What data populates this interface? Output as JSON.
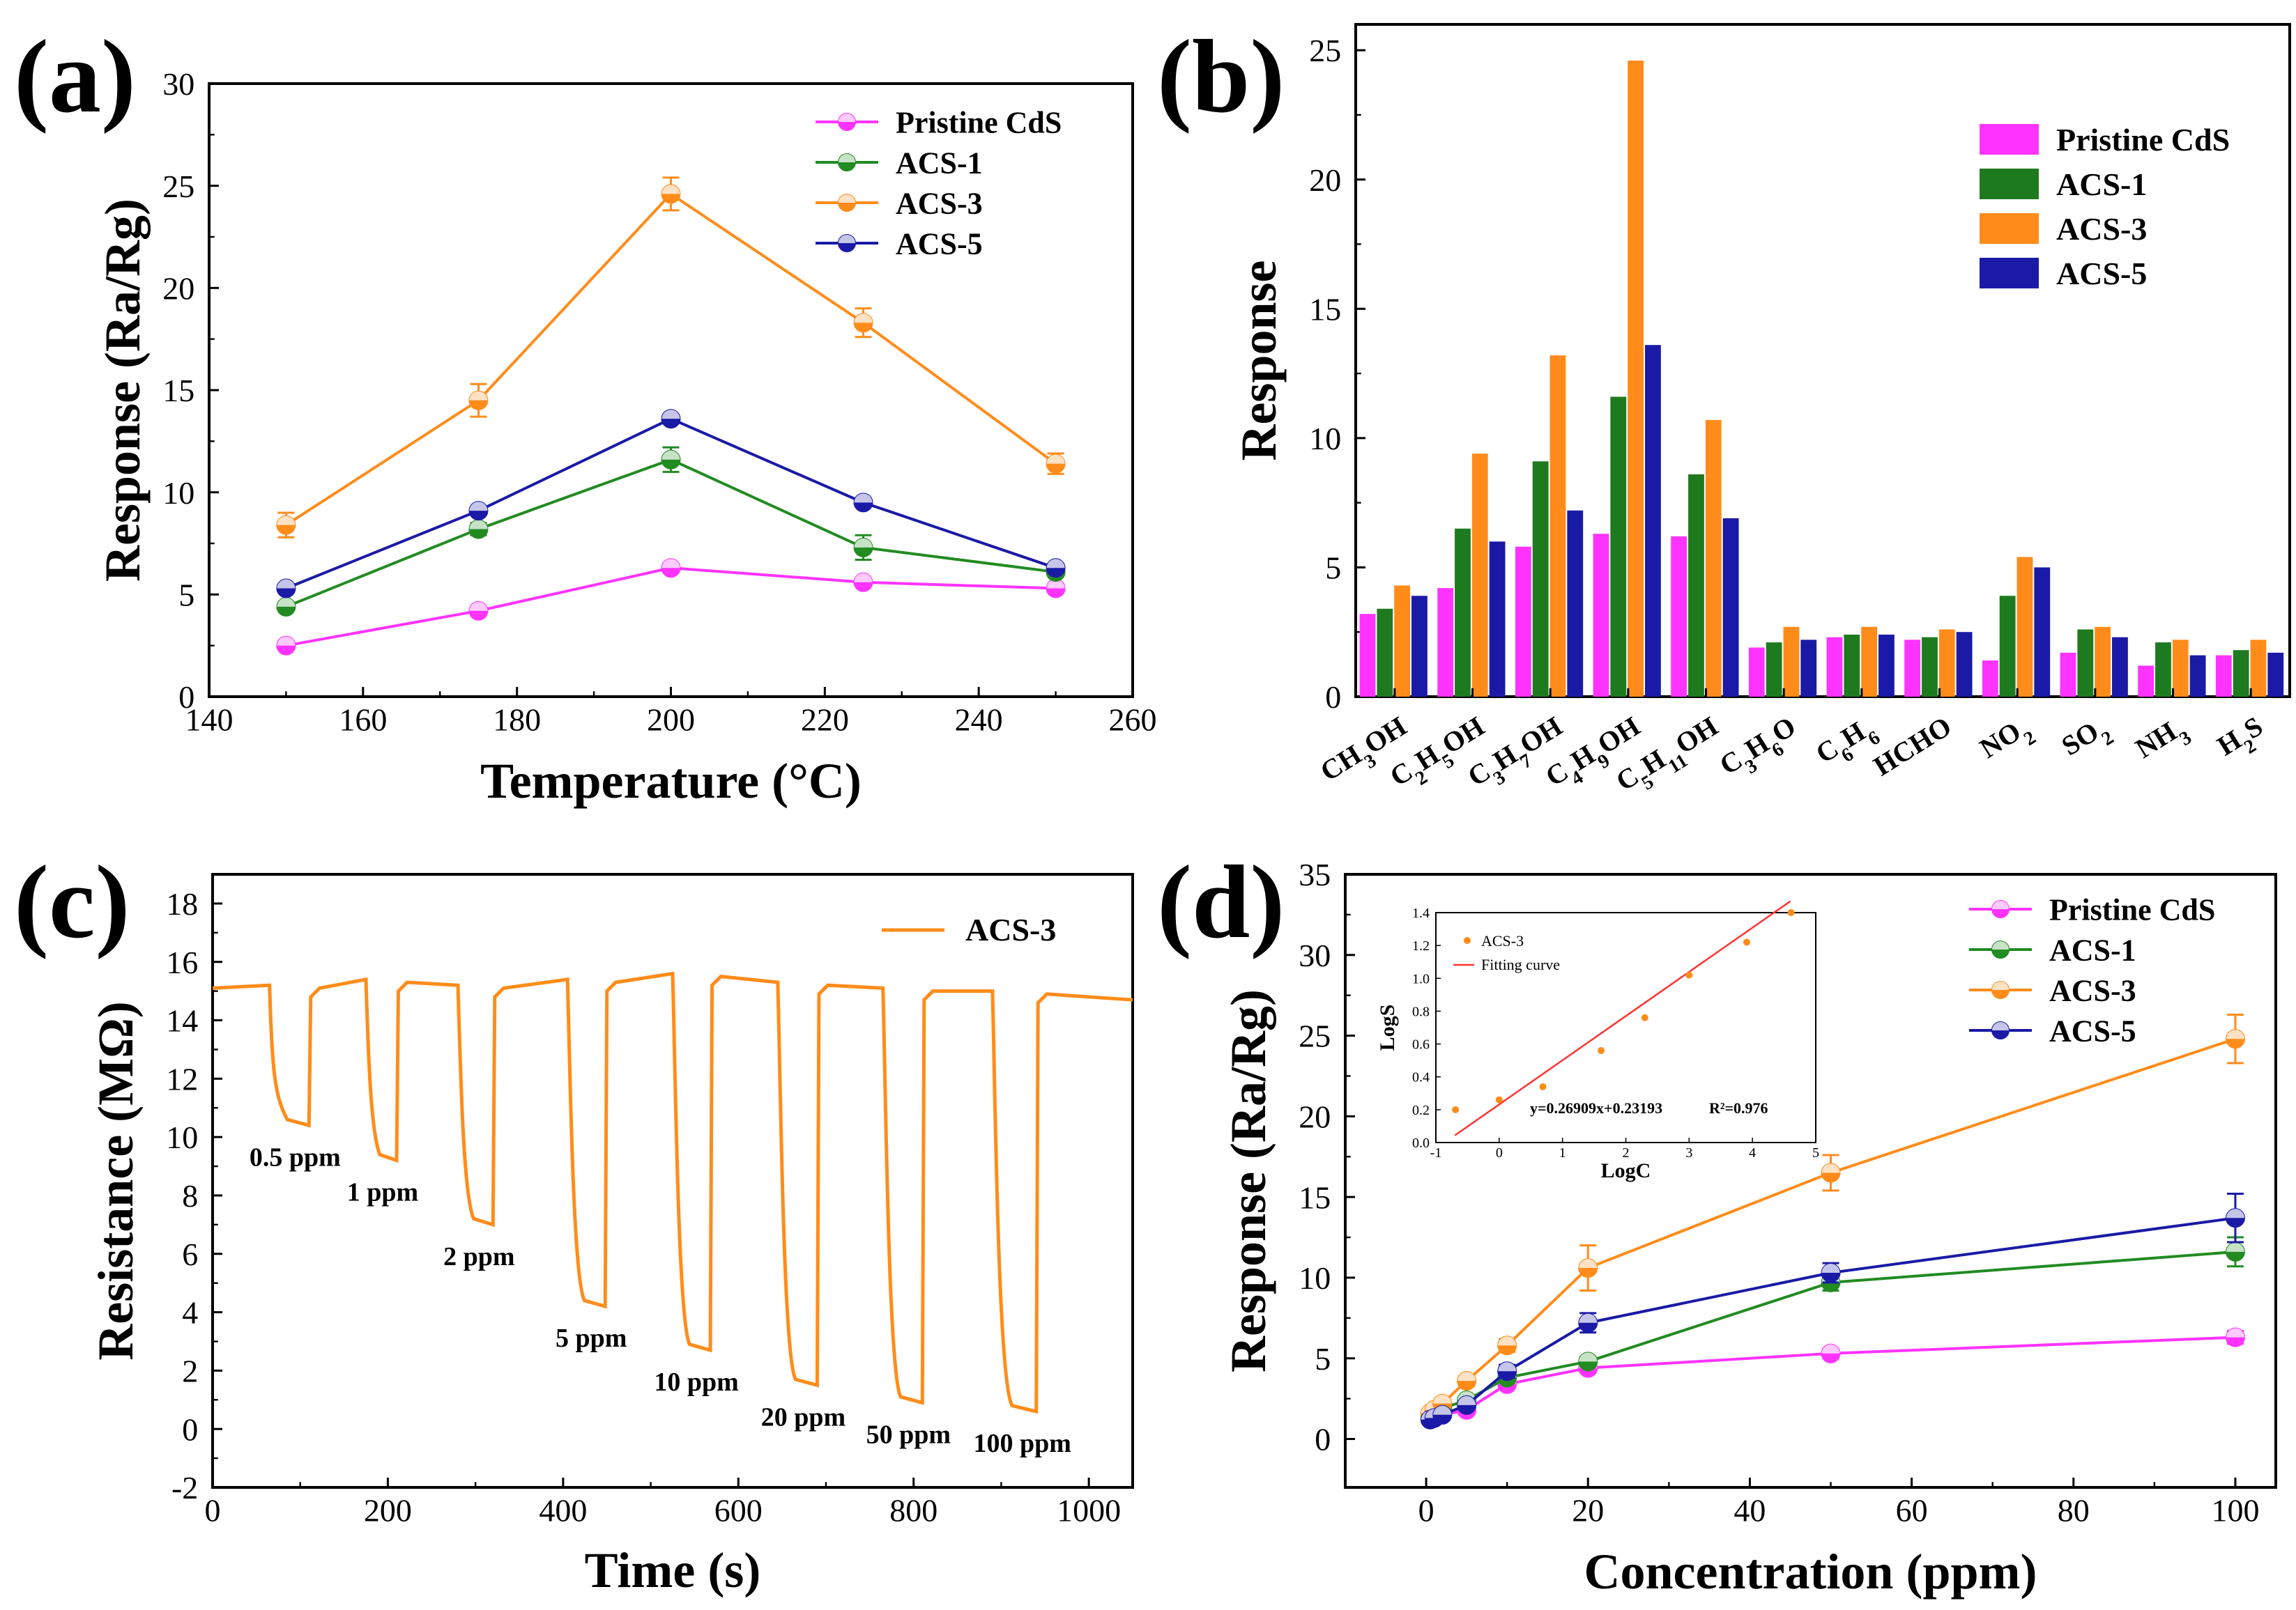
{
  "chart_data": [
    {
      "panel": "(a)",
      "type": "line",
      "xlabel": "Temperature (°C)",
      "ylabel": "Response (Ra/Rg)",
      "xlim": [
        140,
        260
      ],
      "ylim": [
        0,
        30
      ],
      "xticks": [
        140,
        160,
        180,
        200,
        220,
        240,
        260
      ],
      "yticks": [
        0,
        5,
        10,
        15,
        20,
        25,
        30
      ],
      "legend_position": "top-right",
      "x": [
        150,
        175,
        200,
        225,
        250
      ],
      "series": [
        {
          "name": "Pristine CdS",
          "color": "#ff33ff",
          "values": [
            2.5,
            4.2,
            6.3,
            5.6,
            5.3
          ],
          "err": [
            0.2,
            0.2,
            0.2,
            0.2,
            0.2
          ]
        },
        {
          "name": "ACS-1",
          "color": "#228b22",
          "values": [
            4.4,
            8.2,
            11.6,
            7.3,
            6.1
          ],
          "err": [
            0.2,
            0.3,
            0.6,
            0.6,
            0.2
          ]
        },
        {
          "name": "ACS-3",
          "color": "#ff8c1a",
          "values": [
            8.4,
            14.5,
            24.6,
            18.3,
            11.4
          ],
          "err": [
            0.6,
            0.8,
            0.8,
            0.7,
            0.5
          ]
        },
        {
          "name": "ACS-5",
          "color": "#1a1aa6",
          "values": [
            5.3,
            9.1,
            13.6,
            9.5,
            6.3
          ],
          "err": [
            0.2,
            0.2,
            0.2,
            0.2,
            0.2
          ]
        }
      ]
    },
    {
      "panel": "(b)",
      "type": "bar",
      "ylabel": "Response",
      "ylim": [
        0,
        26
      ],
      "yticks": [
        0,
        5,
        10,
        15,
        20,
        25
      ],
      "legend_position": "top-right",
      "categories": [
        {
          "base": "CH",
          "parts": [
            [
              "3",
              true
            ],
            [
              "OH",
              false
            ]
          ]
        },
        {
          "base": "C",
          "parts": [
            [
              "2",
              true
            ],
            [
              "H",
              false
            ],
            [
              "5",
              true
            ],
            [
              "OH",
              false
            ]
          ]
        },
        {
          "base": "C",
          "parts": [
            [
              "3",
              true
            ],
            [
              "H",
              false
            ],
            [
              "7",
              true
            ],
            [
              "OH",
              false
            ]
          ]
        },
        {
          "base": "C",
          "parts": [
            [
              "4",
              true
            ],
            [
              "H",
              false
            ],
            [
              "9",
              true
            ],
            [
              "OH",
              false
            ]
          ]
        },
        {
          "base": "C",
          "parts": [
            [
              "5",
              true
            ],
            [
              "H",
              false
            ],
            [
              "11",
              true
            ],
            [
              "OH",
              false
            ]
          ]
        },
        {
          "base": "C",
          "parts": [
            [
              "3",
              true
            ],
            [
              "H",
              false
            ],
            [
              "6",
              true
            ],
            [
              "O",
              false
            ]
          ]
        },
        {
          "base": "C",
          "parts": [
            [
              "6",
              true
            ],
            [
              "H",
              false
            ],
            [
              "6",
              true
            ]
          ]
        },
        {
          "base": "HCHO",
          "parts": []
        },
        {
          "base": "NO",
          "parts": [
            [
              "2",
              true
            ]
          ]
        },
        {
          "base": "SO",
          "parts": [
            [
              "2",
              true
            ]
          ]
        },
        {
          "base": "NH",
          "parts": [
            [
              "3",
              true
            ]
          ]
        },
        {
          "base": "H",
          "parts": [
            [
              "2",
              true
            ],
            [
              "S",
              false
            ]
          ]
        }
      ],
      "series": [
        {
          "name": "Pristine CdS",
          "color": "#ff33ff",
          "values": [
            3.2,
            4.2,
            5.8,
            6.3,
            6.2,
            1.9,
            2.3,
            2.2,
            1.4,
            1.7,
            1.2,
            1.6
          ]
        },
        {
          "name": "ACS-1",
          "color": "#1e7a1e",
          "values": [
            3.4,
            6.5,
            9.1,
            11.6,
            8.6,
            2.1,
            2.4,
            2.3,
            3.9,
            2.6,
            2.1,
            1.8
          ]
        },
        {
          "name": "ACS-3",
          "color": "#ff8c1a",
          "values": [
            4.3,
            9.4,
            13.2,
            24.6,
            10.7,
            2.7,
            2.7,
            2.6,
            5.4,
            2.7,
            2.2,
            2.2
          ]
        },
        {
          "name": "ACS-5",
          "color": "#1a1aa6",
          "values": [
            3.9,
            6.0,
            7.2,
            13.6,
            6.9,
            2.2,
            2.4,
            2.5,
            5.0,
            2.3,
            1.6,
            1.7
          ]
        }
      ]
    },
    {
      "panel": "(c)",
      "type": "line",
      "xlabel": "Time (s)",
      "ylabel": "Resistance (MΩ)",
      "xlim": [
        0,
        1050
      ],
      "ylim": [
        -2,
        19
      ],
      "xticks": [
        0,
        200,
        400,
        600,
        800,
        1000
      ],
      "yticks": [
        -2,
        0,
        2,
        4,
        6,
        8,
        10,
        12,
        14,
        16,
        18
      ],
      "legend_position": "top-right",
      "series_name": "ACS-3",
      "color": "#ff8c1a",
      "cycles": [
        {
          "start": 65,
          "end": 110,
          "base": 15.2,
          "min": 10.4,
          "label": "0.5 ppm"
        },
        {
          "start": 175,
          "end": 210,
          "base": 15.4,
          "min": 9.2,
          "label": "1 ppm"
        },
        {
          "start": 280,
          "end": 320,
          "base": 15.2,
          "min": 7.0,
          "label": "2 ppm"
        },
        {
          "start": 405,
          "end": 448,
          "base": 15.4,
          "min": 4.2,
          "label": "5 ppm"
        },
        {
          "start": 525,
          "end": 568,
          "base": 15.6,
          "min": 2.7,
          "label": "10 ppm"
        },
        {
          "start": 645,
          "end": 690,
          "base": 15.3,
          "min": 1.5,
          "label": "20 ppm"
        },
        {
          "start": 765,
          "end": 810,
          "base": 15.1,
          "min": 0.9,
          "label": "50 ppm"
        },
        {
          "start": 890,
          "end": 940,
          "base": 15.0,
          "min": 0.6,
          "label": "100 ppm"
        }
      ],
      "end_value": 14.7
    },
    {
      "panel": "(d)",
      "type": "line",
      "xlabel": "Concentration (ppm)",
      "ylabel": "Response (Ra/Rg)",
      "xlim": [
        -10,
        105
      ],
      "ylim": [
        -3,
        35
      ],
      "xticks": [
        0,
        20,
        40,
        60,
        80,
        100
      ],
      "yticks": [
        0,
        5,
        10,
        15,
        20,
        25,
        30,
        35
      ],
      "legend_position": "right",
      "x": [
        0.5,
        1,
        2,
        5,
        10,
        20,
        50,
        100
      ],
      "series": [
        {
          "name": "Pristine CdS",
          "color": "#ff33ff",
          "values": [
            1.3,
            1.4,
            1.5,
            1.8,
            3.4,
            4.4,
            5.3,
            6.3
          ],
          "err": [
            0.1,
            0.1,
            0.1,
            0.2,
            0.2,
            0.3,
            0.3,
            0.4
          ]
        },
        {
          "name": "ACS-1",
          "color": "#228b22",
          "values": [
            1.4,
            1.6,
            1.9,
            2.4,
            3.8,
            4.8,
            9.7,
            11.6
          ],
          "err": [
            0.1,
            0.1,
            0.2,
            0.2,
            0.3,
            0.3,
            0.5,
            0.9
          ]
        },
        {
          "name": "ACS-3",
          "color": "#ff8c1a",
          "values": [
            1.6,
            1.8,
            2.2,
            3.6,
            5.8,
            10.6,
            16.5,
            24.8
          ],
          "err": [
            0.1,
            0.2,
            0.3,
            0.3,
            0.4,
            1.4,
            1.1,
            1.5
          ]
        },
        {
          "name": "ACS-5",
          "color": "#1a1aa6",
          "values": [
            1.2,
            1.3,
            1.5,
            2.1,
            4.2,
            7.2,
            10.3,
            13.7
          ],
          "err": [
            0.1,
            0.1,
            0.2,
            0.2,
            0.4,
            0.6,
            0.6,
            1.5
          ]
        }
      ],
      "inset": {
        "xlabel": "LogC",
        "ylabel": "LogS",
        "xlim": [
          -1,
          5
        ],
        "ylim": [
          0,
          1.4
        ],
        "xticks": [
          -1,
          0,
          1,
          2,
          3,
          4,
          5
        ],
        "yticks": [
          0.0,
          0.2,
          0.4,
          0.6,
          0.8,
          1.0,
          1.2,
          1.4
        ],
        "points_name": "ACS-3",
        "fit_name": "Fitting curve",
        "equation": "y=0.26909x+0.23193",
        "r2": "R²=0.976",
        "x": [
          -0.69,
          0,
          0.69,
          1.61,
          2.3,
          3.0,
          3.91,
          4.61
        ],
        "y": [
          0.2,
          0.26,
          0.34,
          0.56,
          0.76,
          1.02,
          1.22,
          1.4
        ],
        "fit": {
          "slope": 0.26909,
          "intercept": 0.23193
        }
      }
    }
  ]
}
